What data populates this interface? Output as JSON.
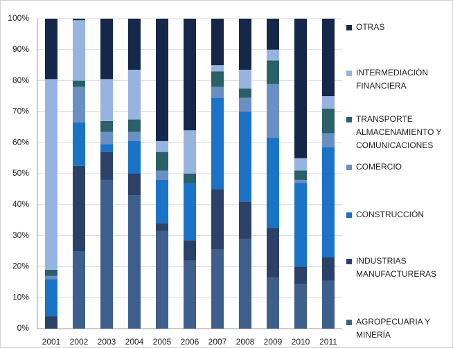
{
  "chart_data": {
    "type": "stacked_bar",
    "categories": [
      "2001",
      "2002",
      "2003",
      "2004",
      "2005",
      "2006",
      "2007",
      "2008",
      "2009",
      "2010",
      "2011"
    ],
    "series": [
      {
        "name": "AGROPECUARIA Y MINERÍA",
        "color": "#3e5f8c",
        "values": [
          0,
          25,
          48,
          43,
          31.5,
          22,
          25.5,
          29,
          16.5,
          14.5,
          15.5
        ]
      },
      {
        "name": "INDUSTRIAS MANUFACTURERAS",
        "color": "#2b4168",
        "values": [
          4,
          27.5,
          9,
          7,
          2.5,
          6.5,
          19.5,
          12,
          16,
          5.5,
          7.5
        ]
      },
      {
        "name": "CONSTRUCCIÓN",
        "color": "#1a73c6",
        "values": [
          12,
          14,
          2.5,
          10.5,
          14,
          18.5,
          29.5,
          29,
          29,
          27,
          35.5
        ]
      },
      {
        "name": "COMERCIO",
        "color": "#6a8fc2",
        "values": [
          1,
          11.5,
          4,
          3,
          3,
          0,
          3.5,
          4.5,
          17.5,
          1,
          4.5
        ]
      },
      {
        "name": "TRANSPORTE ALMACENAMIENTO Y COMUNICACIONES",
        "color": "#2a6068",
        "values": [
          2,
          2,
          3.5,
          4,
          6,
          3,
          5,
          3,
          7.5,
          3,
          8
        ]
      },
      {
        "name": "INTERMEDIACIÓN FINANCIERA",
        "color": "#97b4e0",
        "values": [
          61.5,
          19.5,
          13.5,
          16,
          3.5,
          14,
          2,
          6,
          3.5,
          4,
          4
        ]
      },
      {
        "name": "OTRAS",
        "color": "#15284a",
        "values": [
          19.5,
          0.5,
          19.5,
          16.5,
          39.5,
          36,
          15,
          16.5,
          10,
          45,
          25
        ]
      }
    ],
    "ylim": [
      0,
      100
    ],
    "yticks": [
      {
        "value": 0,
        "label": "0%"
      },
      {
        "value": 10,
        "label": "10%"
      },
      {
        "value": 20,
        "label": "20%"
      },
      {
        "value": 30,
        "label": "30%"
      },
      {
        "value": 40,
        "label": "40%"
      },
      {
        "value": 50,
        "label": "50%"
      },
      {
        "value": 60,
        "label": "60%"
      },
      {
        "value": 70,
        "label": "70%"
      },
      {
        "value": 80,
        "label": "80%"
      },
      {
        "value": 90,
        "label": "90%"
      },
      {
        "value": 100,
        "label": "100%"
      }
    ],
    "grid": true
  }
}
